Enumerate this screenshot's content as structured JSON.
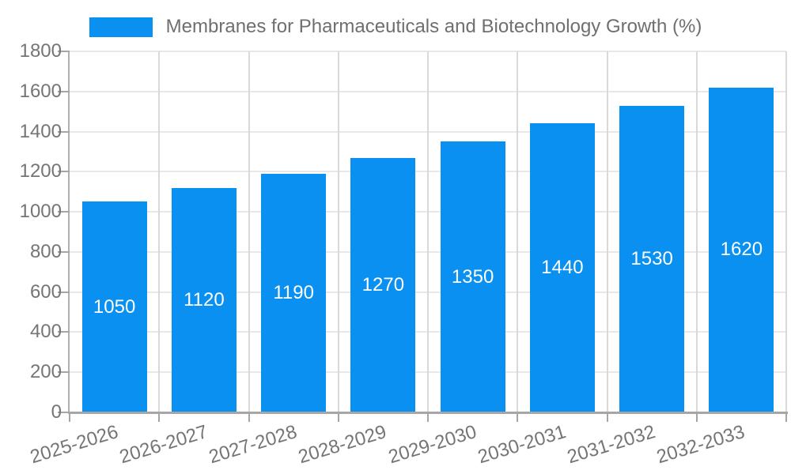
{
  "chart_data": {
    "type": "bar",
    "title": "Membranes for Pharmaceuticals and Biotechnology Growth (%)",
    "categories": [
      "2025-2026",
      "2026-2027",
      "2027-2028",
      "2028-2029",
      "2029-2030",
      "2030-2031",
      "2031-2032",
      "2032-2033"
    ],
    "values": [
      1050,
      1120,
      1190,
      1270,
      1350,
      1440,
      1530,
      1620
    ],
    "xlabel": "",
    "ylabel": "",
    "ylim": [
      0,
      1800
    ],
    "yticks": [
      0,
      200,
      400,
      600,
      800,
      1000,
      1200,
      1400,
      1600,
      1800
    ],
    "grid": true,
    "legend_position": "top-center",
    "value_label_position": "inside-center",
    "colors": {
      "bar": "#0a90f0",
      "value_label": "#ffffff",
      "axis_x": "#a6a6a6",
      "axis_y": "#b0b0b0",
      "tick": "#a6a6a6",
      "grid_h": "#e8e8e8",
      "grid_v": "#d9d9d9",
      "tick_label": "#757575",
      "title": "#6f6f6f",
      "background": "#ffffff"
    }
  },
  "legend": {
    "swatch_color": "#0a90f0",
    "label": "Membranes for Pharmaceuticals and Biotechnology Growth (%)"
  }
}
